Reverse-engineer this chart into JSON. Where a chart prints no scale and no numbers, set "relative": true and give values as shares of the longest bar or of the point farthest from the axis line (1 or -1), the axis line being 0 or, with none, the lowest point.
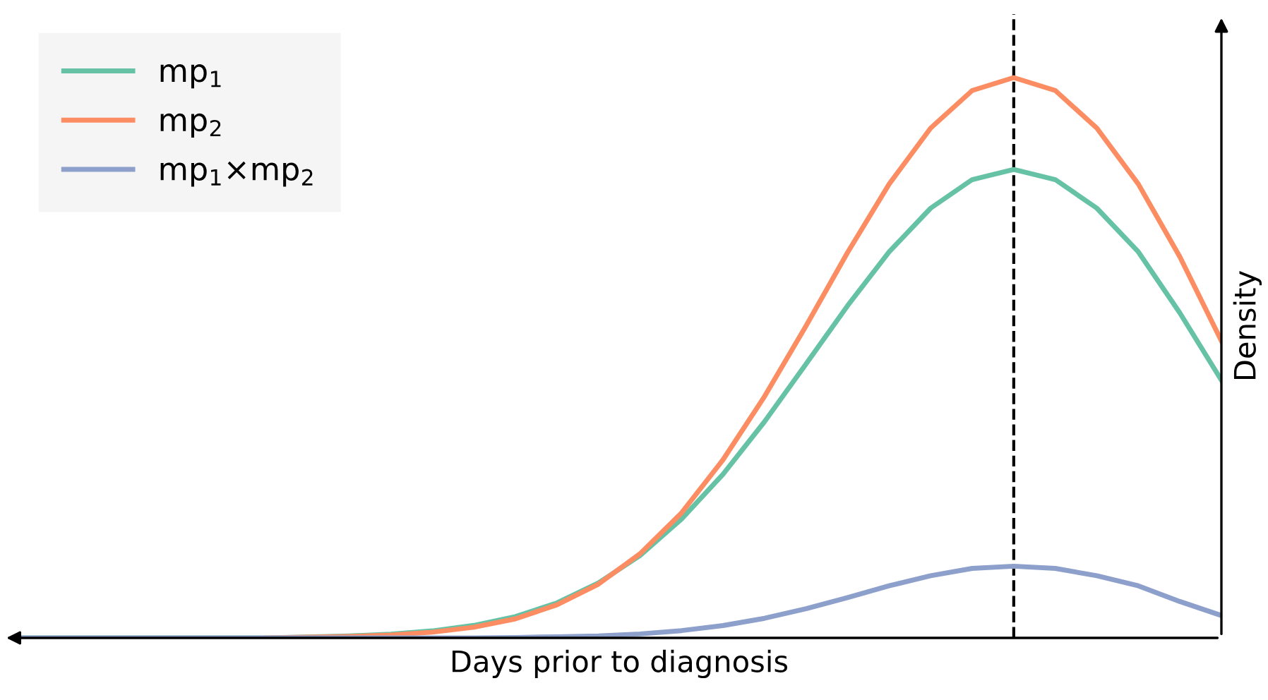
{
  "chart_data": {
    "type": "line",
    "relative": true,
    "xlabel": "Days prior to diagnosis",
    "ylabel": "Density",
    "categories": [
      null,
      null,
      null,
      null,
      null,
      null,
      null,
      null,
      null,
      null,
      null,
      null,
      null,
      null,
      null,
      null,
      null,
      null,
      null,
      null,
      null,
      null,
      null,
      null,
      null,
      null,
      null,
      null,
      null,
      null
    ],
    "series": [
      {
        "name": "mp$_{1}$",
        "color": "#66c2a5",
        "values": [
          0,
          0,
          0,
          0,
          0,
          0,
          0,
          0.0017,
          0.0035,
          0.0067,
          0.0125,
          0.0223,
          0.038,
          0.0624,
          0.098,
          0.147,
          0.212,
          0.292,
          0.386,
          0.489,
          0.593,
          0.689,
          0.767,
          0.818,
          0.836,
          0.818,
          0.767,
          0.689,
          0.58,
          0.46
        ]
      },
      {
        "name": "mp$_{2}$",
        "color": "#fc8d62",
        "values": [
          null,
          null,
          null,
          null,
          null,
          null,
          0,
          0.0012,
          0.0025,
          0.0052,
          0.0102,
          0.019,
          0.034,
          0.059,
          0.096,
          0.15,
          0.223,
          0.318,
          0.431,
          0.557,
          0.688,
          0.81,
          0.91,
          0.977,
          1,
          0.977,
          0.91,
          0.81,
          0.68,
          0.53
        ]
      },
      {
        "name": "mp$_{1}$×mp$_{2}$",
        "color": "#8da0cb",
        "values": [
          0,
          0,
          0,
          0,
          0,
          0,
          0,
          0,
          0,
          0,
          0,
          0,
          0.0008,
          0.002,
          0.0036,
          0.0071,
          0.013,
          0.022,
          0.035,
          0.052,
          0.072,
          0.093,
          0.111,
          0.124,
          0.128,
          0.124,
          0.111,
          0.093,
          0.065,
          0.04
        ]
      }
    ],
    "legend": "top left",
    "line_style": "solid",
    "marker": "none"
  }
}
